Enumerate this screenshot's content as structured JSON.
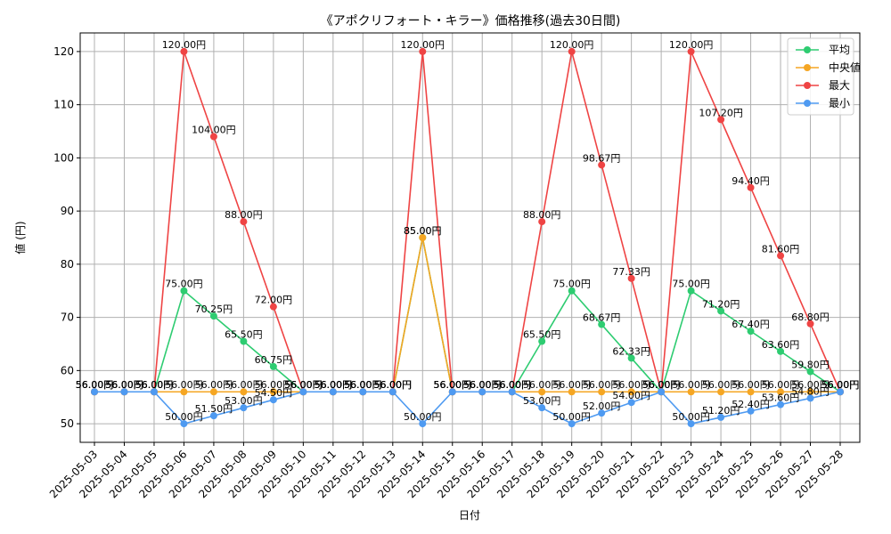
{
  "chart_data": {
    "type": "line",
    "title": "《アポクリフォート・キラー》価格推移(過去30日間)",
    "xlabel": "日付",
    "ylabel": "値 (円)",
    "ylim": [
      46.5,
      123.5
    ],
    "yticks": [
      50,
      60,
      70,
      80,
      90,
      100,
      110,
      120
    ],
    "grid": true,
    "legend_position": "top-right",
    "label_suffix": "円",
    "categories": [
      "2025-05-03",
      "2025-05-04",
      "2025-05-05",
      "2025-05-06",
      "2025-05-07",
      "2025-05-08",
      "2025-05-09",
      "2025-05-10",
      "2025-05-11",
      "2025-05-12",
      "2025-05-13",
      "2025-05-14",
      "2025-05-15",
      "2025-05-16",
      "2025-05-17",
      "2025-05-18",
      "2025-05-19",
      "2025-05-20",
      "2025-05-21",
      "2025-05-22",
      "2025-05-23",
      "2025-05-24",
      "2025-05-25",
      "2025-05-26",
      "2025-05-27",
      "2025-05-28"
    ],
    "series": [
      {
        "name": "平均",
        "color": "#2ecc71",
        "values": [
          56,
          56,
          56,
          75,
          70.25,
          65.5,
          60.75,
          56,
          56,
          56,
          56,
          85,
          56,
          56,
          56,
          65.5,
          75,
          68.67,
          62.33,
          56,
          75,
          71.2,
          67.4,
          63.6,
          59.8,
          56
        ]
      },
      {
        "name": "中央値",
        "color": "#f5a623",
        "values": [
          56,
          56,
          56,
          56,
          56,
          56,
          56,
          56,
          56,
          56,
          56,
          85,
          56,
          56,
          56,
          56,
          56,
          56,
          56,
          56,
          56,
          56,
          56,
          56,
          56,
          56
        ]
      },
      {
        "name": "最大",
        "color": "#ef4444",
        "values": [
          56,
          56,
          56,
          120,
          104,
          88,
          72,
          56,
          56,
          56,
          56,
          120,
          56,
          56,
          56,
          88,
          120,
          98.67,
          77.33,
          56,
          120,
          107.2,
          94.4,
          81.6,
          68.8,
          56
        ]
      },
      {
        "name": "最小",
        "color": "#4e9af1",
        "values": [
          56,
          56,
          56,
          50,
          51.5,
          53,
          54.5,
          56,
          56,
          56,
          56,
          50,
          56,
          56,
          56,
          53,
          50,
          52,
          54,
          56,
          50,
          51.2,
          52.4,
          53.6,
          54.8,
          56
        ]
      }
    ]
  }
}
